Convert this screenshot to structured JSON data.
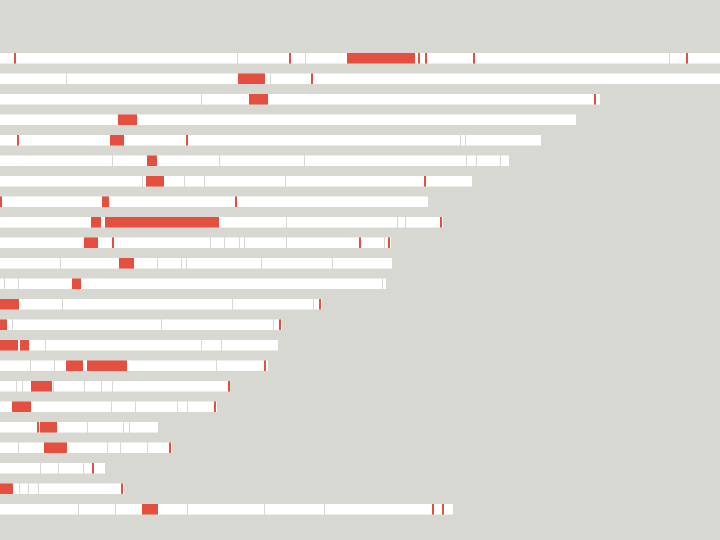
{
  "colors": {
    "background": "#d8d8d2",
    "bar": "#ffffff",
    "highlight": "#e45040",
    "tick": "#e45040",
    "divider": "#d8d8d2"
  },
  "chart_data": {
    "type": "bar",
    "orientation": "horizontal",
    "title": "",
    "xlabel": "",
    "ylabel": "",
    "xlim": [
      0,
      720
    ],
    "grid": false,
    "legend": "none",
    "rows": [
      {
        "length": 720,
        "highlights": [
          [
            347,
            415
          ]
        ],
        "ticks": [
          14,
          289,
          418,
          425,
          473,
          686
        ],
        "dividers": [
          237,
          305,
          669
        ]
      },
      {
        "length": 720,
        "highlights": [
          [
            238,
            265
          ]
        ],
        "ticks": [
          311
        ],
        "dividers": [
          66,
          270
        ]
      },
      {
        "length": 600,
        "highlights": [
          [
            249,
            268
          ]
        ],
        "ticks": [
          594
        ],
        "dividers": [
          201
        ]
      },
      {
        "length": 576,
        "highlights": [
          [
            118,
            137
          ]
        ],
        "ticks": [],
        "dividers": []
      },
      {
        "length": 541,
        "highlights": [
          [
            110,
            124
          ]
        ],
        "ticks": [
          17,
          186
        ],
        "dividers": [
          460,
          465
        ]
      },
      {
        "length": 509,
        "highlights": [
          [
            147,
            157
          ]
        ],
        "ticks": [],
        "dividers": [
          112,
          219,
          304,
          466,
          476,
          500
        ]
      },
      {
        "length": 472,
        "highlights": [
          [
            146,
            164
          ]
        ],
        "ticks": [
          424
        ],
        "dividers": [
          142,
          184,
          204,
          285
        ]
      },
      {
        "length": 428,
        "highlights": [
          [
            102,
            109
          ]
        ],
        "ticks": [
          0,
          235
        ],
        "dividers": []
      },
      {
        "length": 443,
        "highlights": [
          [
            91,
            101
          ],
          [
            105,
            219
          ]
        ],
        "ticks": [
          440
        ],
        "dividers": [
          286,
          397,
          405
        ]
      },
      {
        "length": 391,
        "highlights": [
          [
            84,
            98
          ]
        ],
        "ticks": [
          112,
          359,
          388
        ],
        "dividers": [
          210,
          224,
          239,
          244,
          286,
          384
        ]
      },
      {
        "length": 392,
        "highlights": [
          [
            121,
            134
          ]
        ],
        "ticks": [
          119
        ],
        "dividers": [
          60,
          157,
          181,
          186,
          261,
          332
        ]
      },
      {
        "length": 386,
        "highlights": [
          [
            72,
            81
          ]
        ],
        "ticks": [],
        "dividers": [
          4,
          18,
          382
        ]
      },
      {
        "length": 322,
        "highlights": [
          [
            0,
            19
          ]
        ],
        "ticks": [
          319
        ],
        "dividers": [
          62,
          232,
          313
        ]
      },
      {
        "length": 282,
        "highlights": [
          [
            0,
            7
          ]
        ],
        "ticks": [
          279
        ],
        "dividers": [
          12,
          161,
          273
        ]
      },
      {
        "length": 278,
        "highlights": [
          [
            0,
            18
          ],
          [
            20,
            29
          ]
        ],
        "ticks": [],
        "dividers": [
          45,
          201,
          221
        ]
      },
      {
        "length": 268,
        "highlights": [
          [
            66,
            83
          ],
          [
            87,
            127
          ]
        ],
        "ticks": [
          264
        ],
        "dividers": [
          30,
          54,
          216
        ]
      },
      {
        "length": 229,
        "highlights": [
          [
            31,
            52
          ]
        ],
        "ticks": [
          228
        ],
        "dividers": [
          16,
          22,
          53,
          84,
          101,
          112
        ]
      },
      {
        "length": 217,
        "highlights": [
          [
            12,
            31
          ]
        ],
        "ticks": [
          214
        ],
        "dividers": [
          111,
          135,
          177,
          187
        ]
      },
      {
        "length": 158,
        "highlights": [
          [
            40,
            57
          ]
        ],
        "ticks": [
          37
        ],
        "dividers": [
          87,
          123,
          129
        ]
      },
      {
        "length": 172,
        "highlights": [
          [
            44,
            67
          ]
        ],
        "ticks": [
          169
        ],
        "dividers": [
          18,
          107,
          120,
          147
        ]
      },
      {
        "length": 105,
        "highlights": [],
        "ticks": [
          92
        ],
        "dividers": [
          40,
          58,
          83
        ]
      },
      {
        "length": 124,
        "highlights": [
          [
            0,
            13
          ]
        ],
        "ticks": [
          121
        ],
        "dividers": [
          19,
          28,
          38
        ]
      },
      {
        "length": 453,
        "highlights": [
          [
            142,
            158
          ]
        ],
        "ticks": [
          432,
          442
        ],
        "dividers": [
          78,
          115,
          187,
          264,
          324
        ]
      }
    ]
  }
}
